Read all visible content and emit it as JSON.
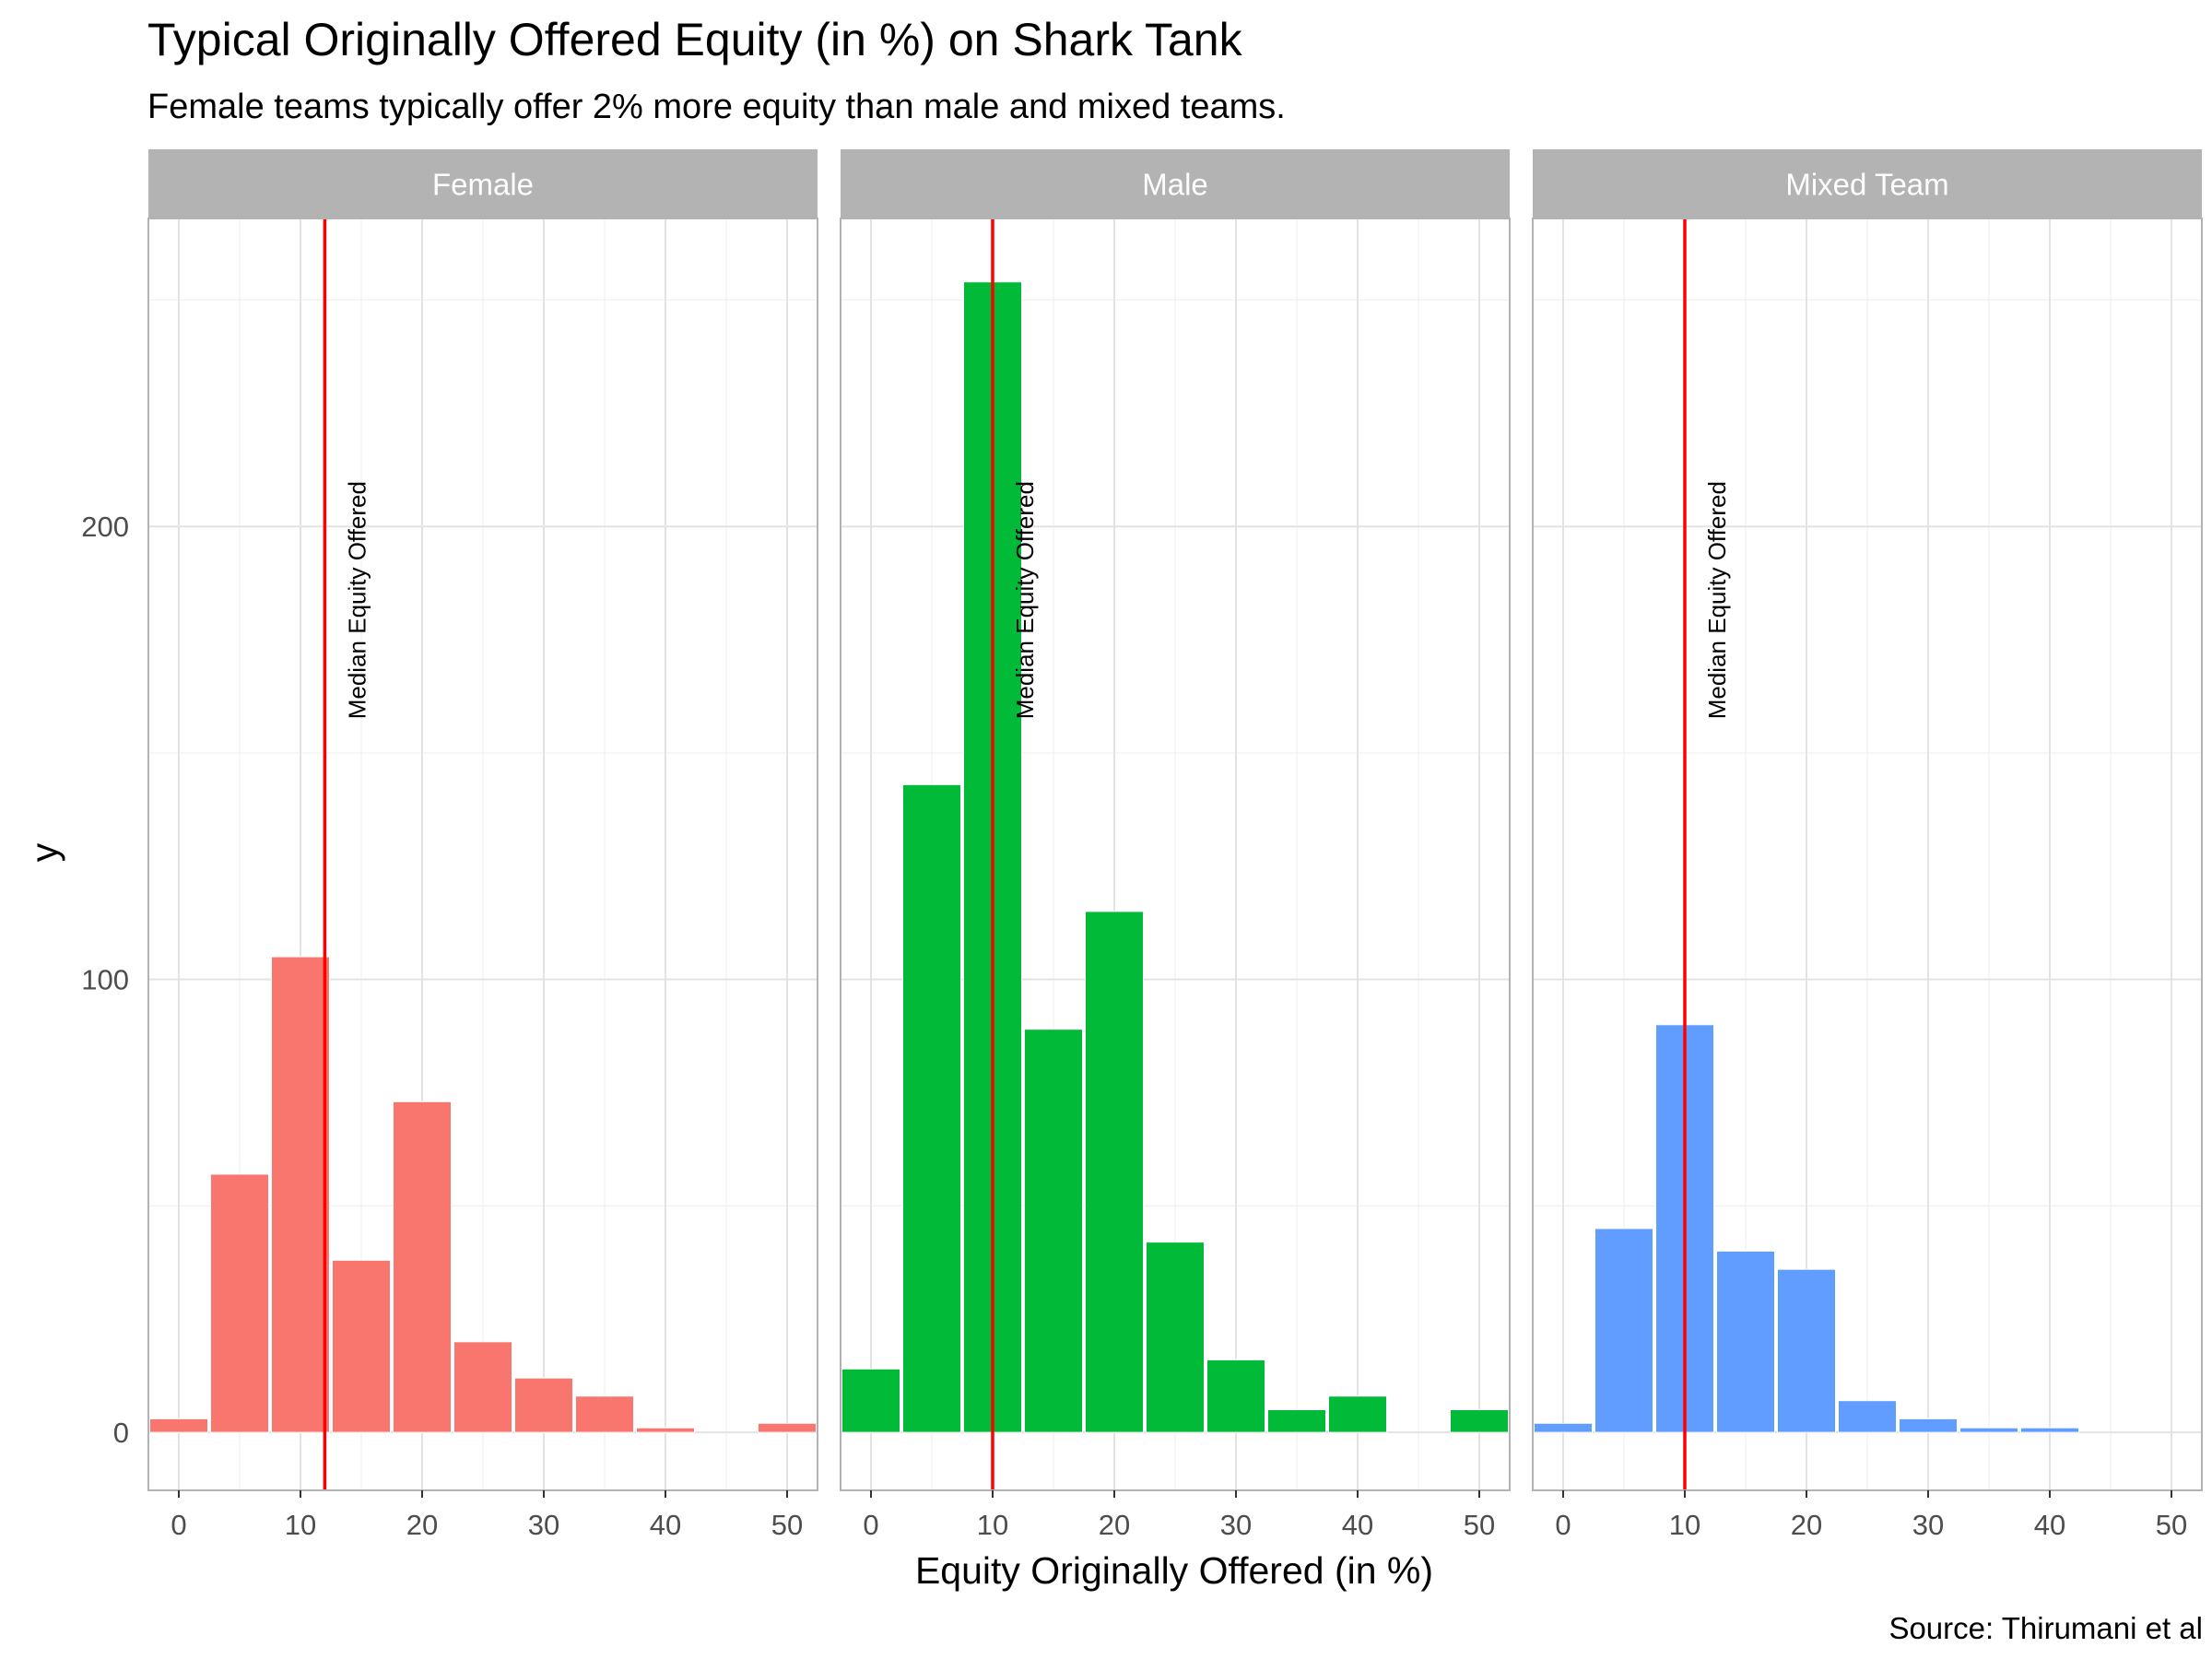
{
  "chart_data": {
    "type": "bar",
    "title": "Typical Originally Offered Equity (in %) on Shark Tank",
    "subtitle": "Female teams typically offer 2% more equity than male and mixed teams.",
    "xlabel": "Equity Originally Offered (in %)",
    "ylabel": "y",
    "caption": "Source: Thirumani et al",
    "annotation": "Median Equity Offered",
    "xlim": [
      -2.5,
      52.5
    ],
    "ylim": [
      -12.8,
      268
    ],
    "x_ticks": [
      0,
      10,
      20,
      30,
      40,
      50
    ],
    "y_ticks": [
      0,
      100,
      200
    ],
    "binwidth": 5,
    "bin_centers": [
      0,
      5,
      10,
      15,
      20,
      25,
      30,
      35,
      40,
      45,
      50
    ],
    "grid": true,
    "legend": "none",
    "colors": {
      "Female": "#F8766D",
      "Male": "#00BA38",
      "Mixed Team": "#619CFF",
      "median_line": "#FF0000",
      "strip_background": "#B3B3B3"
    },
    "series": [
      {
        "name": "Female",
        "values": [
          3,
          57,
          105,
          38,
          73,
          20,
          12,
          8,
          1,
          0,
          2
        ],
        "median": 12
      },
      {
        "name": "Male",
        "values": [
          14,
          143,
          254,
          89,
          115,
          42,
          16,
          5,
          8,
          0,
          5
        ],
        "median": 10
      },
      {
        "name": "Mixed Team",
        "values": [
          2,
          45,
          90,
          40,
          36,
          7,
          3,
          1,
          1,
          0,
          0
        ],
        "median": 10
      }
    ]
  }
}
